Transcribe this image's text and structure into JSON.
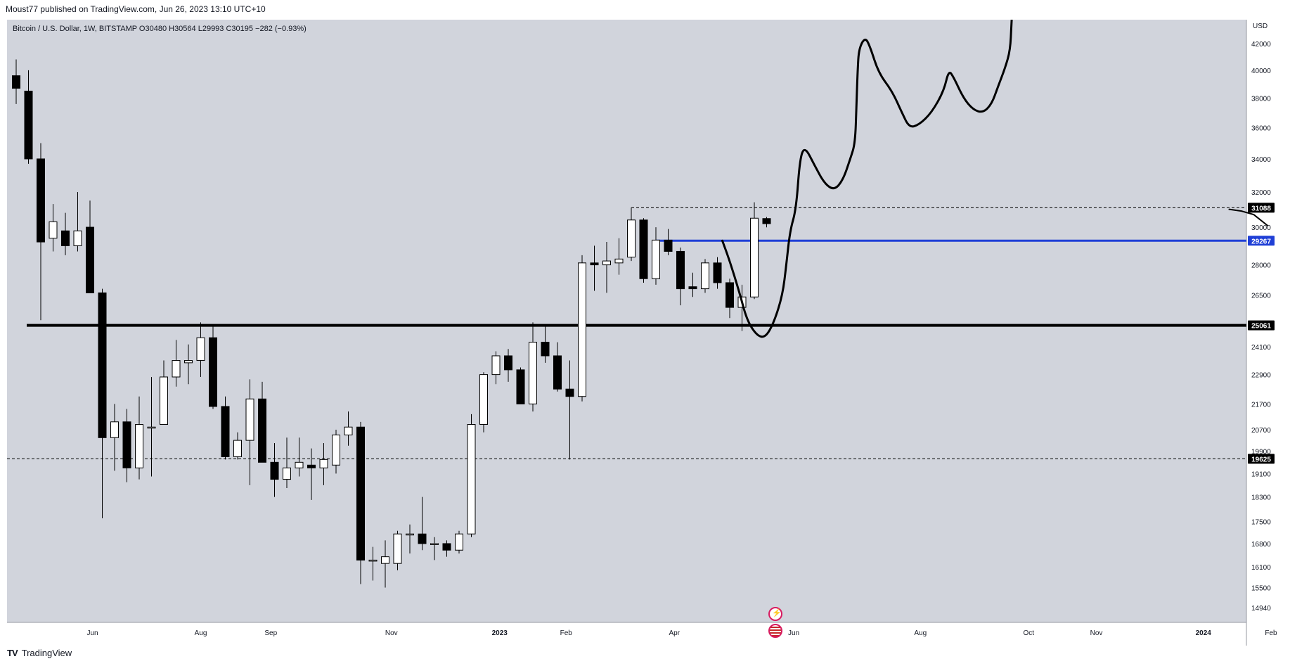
{
  "header": {
    "publisher_line": "Moust77 published on TradingView.com, Jun 26, 2023 13:10 UTC+10"
  },
  "symbol_info": "Bitcoin / U.S. Dollar, 1W, BITSTAMP  O30480  H30564  L29993  C30195  −282 (−0.93%)",
  "footer": {
    "logo_text": "TV",
    "brand": "TradingView"
  },
  "icons": {
    "event_badge": "flash-icon",
    "economic_badge": "us-flag-icon"
  },
  "colors": {
    "background": "#d1d4dc",
    "candle_up": "#ffffff",
    "candle_down": "#000000",
    "support_line": "#000000",
    "blue_line": "#1f3fd6",
    "projection": "#000000"
  },
  "chart_data": {
    "type": "candlestick",
    "currency_label": "USD",
    "y_ticks": [
      42000,
      40000,
      38000,
      36000,
      34000,
      32000,
      30000,
      28000,
      26500,
      24100,
      22900,
      21700,
      20700,
      19900,
      19100,
      18300,
      17500,
      16800,
      16100,
      15500,
      14940
    ],
    "ylim": [
      14500,
      44500
    ],
    "y_scale": "log",
    "x_ticks": [
      "Jun",
      "Aug",
      "Sep",
      "Nov",
      "2023",
      "Feb",
      "Apr",
      "Jun",
      "Aug",
      "Oct",
      "Nov",
      "2024",
      "Feb"
    ],
    "x_tick_weeks": [
      6.2,
      15,
      20.7,
      30.5,
      39.3,
      44.7,
      53.5,
      63.2,
      73.5,
      82.3,
      87.8,
      96.5,
      102
    ],
    "candles": [
      {
        "w": 0,
        "o": 39600,
        "h": 40800,
        "l": 37600,
        "c": 38700
      },
      {
        "w": 1,
        "o": 38500,
        "h": 40000,
        "l": 33700,
        "c": 34000
      },
      {
        "w": 2,
        "o": 34000,
        "h": 35000,
        "l": 25300,
        "c": 29200
      },
      {
        "w": 3,
        "o": 29400,
        "h": 31300,
        "l": 28700,
        "c": 30300
      },
      {
        "w": 4,
        "o": 29800,
        "h": 30800,
        "l": 28500,
        "c": 29000
      },
      {
        "w": 5,
        "o": 29000,
        "h": 32000,
        "l": 28700,
        "c": 29800
      },
      {
        "w": 6,
        "o": 30000,
        "h": 31500,
        "l": 26600,
        "c": 26600
      },
      {
        "w": 7,
        "o": 26600,
        "h": 26800,
        "l": 17600,
        "c": 20400
      },
      {
        "w": 8,
        "o": 20400,
        "h": 21700,
        "l": 19200,
        "c": 21000
      },
      {
        "w": 9,
        "o": 21000,
        "h": 21500,
        "l": 18800,
        "c": 19300
      },
      {
        "w": 10,
        "o": 19300,
        "h": 22000,
        "l": 18900,
        "c": 20900
      },
      {
        "w": 11,
        "o": 20800,
        "h": 22800,
        "l": 19000,
        "c": 20800
      },
      {
        "w": 12,
        "o": 20900,
        "h": 23500,
        "l": 20900,
        "c": 22800
      },
      {
        "w": 13,
        "o": 22800,
        "h": 24400,
        "l": 22400,
        "c": 23500
      },
      {
        "w": 14,
        "o": 23400,
        "h": 24200,
        "l": 22500,
        "c": 23500
      },
      {
        "w": 15,
        "o": 23500,
        "h": 25200,
        "l": 22800,
        "c": 24500
      },
      {
        "w": 16,
        "o": 24500,
        "h": 25100,
        "l": 21500,
        "c": 21600
      },
      {
        "w": 17,
        "o": 21600,
        "h": 22000,
        "l": 19600,
        "c": 19700
      },
      {
        "w": 18,
        "o": 19700,
        "h": 20600,
        "l": 19600,
        "c": 20300
      },
      {
        "w": 19,
        "o": 20300,
        "h": 22700,
        "l": 18700,
        "c": 21900
      },
      {
        "w": 20,
        "o": 21900,
        "h": 22600,
        "l": 19500,
        "c": 19500
      },
      {
        "w": 21,
        "o": 19500,
        "h": 20200,
        "l": 18300,
        "c": 18900
      },
      {
        "w": 22,
        "o": 18900,
        "h": 20400,
        "l": 18600,
        "c": 19300
      },
      {
        "w": 23,
        "o": 19300,
        "h": 20400,
        "l": 19000,
        "c": 19500
      },
      {
        "w": 24,
        "o": 19400,
        "h": 20000,
        "l": 18200,
        "c": 19300
      },
      {
        "w": 25,
        "o": 19300,
        "h": 20200,
        "l": 18700,
        "c": 19600
      },
      {
        "w": 26,
        "o": 19400,
        "h": 20700,
        "l": 19100,
        "c": 20500
      },
      {
        "w": 27,
        "o": 20500,
        "h": 21400,
        "l": 20100,
        "c": 20800
      },
      {
        "w": 28,
        "o": 20800,
        "h": 21000,
        "l": 15600,
        "c": 16300
      },
      {
        "w": 29,
        "o": 16300,
        "h": 16700,
        "l": 15700,
        "c": 16300
      },
      {
        "w": 30,
        "o": 16200,
        "h": 16900,
        "l": 15500,
        "c": 16400
      },
      {
        "w": 31,
        "o": 16200,
        "h": 17200,
        "l": 16000,
        "c": 17100
      },
      {
        "w": 32,
        "o": 17100,
        "h": 17400,
        "l": 16500,
        "c": 17100
      },
      {
        "w": 33,
        "o": 17100,
        "h": 18300,
        "l": 16600,
        "c": 16800
      },
      {
        "w": 34,
        "o": 16800,
        "h": 17000,
        "l": 16300,
        "c": 16800
      },
      {
        "w": 35,
        "o": 16800,
        "h": 16900,
        "l": 16400,
        "c": 16600
      },
      {
        "w": 36,
        "o": 16600,
        "h": 17200,
        "l": 16500,
        "c": 17100
      },
      {
        "w": 37,
        "o": 17100,
        "h": 21300,
        "l": 17000,
        "c": 20900
      },
      {
        "w": 38,
        "o": 20900,
        "h": 23000,
        "l": 20600,
        "c": 22900
      },
      {
        "w": 39,
        "o": 22900,
        "h": 23900,
        "l": 22500,
        "c": 23700
      },
      {
        "w": 40,
        "o": 23700,
        "h": 24000,
        "l": 22600,
        "c": 23100
      },
      {
        "w": 41,
        "o": 23100,
        "h": 23200,
        "l": 21700,
        "c": 21700
      },
      {
        "w": 42,
        "o": 21700,
        "h": 25200,
        "l": 21400,
        "c": 24300
      },
      {
        "w": 43,
        "o": 24300,
        "h": 25100,
        "l": 23400,
        "c": 23700
      },
      {
        "w": 44,
        "o": 23700,
        "h": 24300,
        "l": 22200,
        "c": 22300
      },
      {
        "w": 45,
        "o": 22300,
        "h": 23500,
        "l": 19600,
        "c": 22000
      },
      {
        "w": 46,
        "o": 22000,
        "h": 28500,
        "l": 21800,
        "c": 28100
      },
      {
        "w": 47,
        "o": 28100,
        "h": 29000,
        "l": 26700,
        "c": 28000
      },
      {
        "w": 48,
        "o": 28000,
        "h": 29200,
        "l": 26600,
        "c": 28200
      },
      {
        "w": 49,
        "o": 28100,
        "h": 29400,
        "l": 27500,
        "c": 28300
      },
      {
        "w": 50,
        "o": 28400,
        "h": 31100,
        "l": 28200,
        "c": 30400
      },
      {
        "w": 51,
        "o": 30400,
        "h": 30500,
        "l": 27100,
        "c": 27300
      },
      {
        "w": 52,
        "o": 27300,
        "h": 30000,
        "l": 27000,
        "c": 29300
      },
      {
        "w": 53,
        "o": 29300,
        "h": 29900,
        "l": 28500,
        "c": 28700
      },
      {
        "w": 54,
        "o": 28700,
        "h": 28900,
        "l": 26000,
        "c": 26800
      },
      {
        "w": 55,
        "o": 26900,
        "h": 27600,
        "l": 26400,
        "c": 26800
      },
      {
        "w": 56,
        "o": 26800,
        "h": 28300,
        "l": 26600,
        "c": 28100
      },
      {
        "w": 57,
        "o": 28100,
        "h": 28400,
        "l": 26800,
        "c": 27100
      },
      {
        "w": 58,
        "o": 27100,
        "h": 27300,
        "l": 25400,
        "c": 25900
      },
      {
        "w": 59,
        "o": 25900,
        "h": 27000,
        "l": 24800,
        "c": 26400
      },
      {
        "w": 60,
        "o": 26400,
        "h": 31400,
        "l": 26300,
        "c": 30500
      },
      {
        "w": 61,
        "o": 30480,
        "h": 30564,
        "l": 29993,
        "c": 30195
      }
    ],
    "price_labels": [
      {
        "value": 31088,
        "label": "31088",
        "style": "dashed",
        "color": "#000000",
        "from_week": 50
      },
      {
        "value": 29267,
        "label": "29267",
        "style": "solid",
        "color": "#1f3fd6",
        "from_week": 52
      },
      {
        "value": 25061,
        "label": "25061",
        "style": "solid-thick",
        "color": "#000000",
        "from_week": -1
      },
      {
        "value": 19625,
        "label": "19625",
        "style": "dashed",
        "color": "#000000",
        "from_week": -2
      }
    ],
    "projection_path": [
      [
        57.4,
        29267
      ],
      [
        58,
        28200
      ],
      [
        58.8,
        26600
      ],
      [
        59.4,
        25300
      ],
      [
        60.2,
        24600
      ],
      [
        60.9,
        24500
      ],
      [
        61.6,
        25200
      ],
      [
        62.3,
        26500
      ],
      [
        62.6,
        28000
      ],
      [
        62.9,
        29800
      ],
      [
        63.4,
        31000
      ],
      [
        63.7,
        34000
      ],
      [
        64.1,
        34800
      ],
      [
        64.9,
        33600
      ],
      [
        65.7,
        32500
      ],
      [
        66.5,
        32100
      ],
      [
        67.2,
        32700
      ],
      [
        67.8,
        34000
      ],
      [
        68.2,
        35000
      ],
      [
        68.3,
        37500
      ],
      [
        68.4,
        40000
      ],
      [
        68.5,
        41600
      ],
      [
        69,
        42500
      ],
      [
        69.4,
        41800
      ],
      [
        70.1,
        39800
      ],
      [
        71.2,
        38500
      ],
      [
        72,
        37000
      ],
      [
        72.6,
        36000
      ],
      [
        73.4,
        36200
      ],
      [
        74.4,
        37000
      ],
      [
        75.4,
        38500
      ],
      [
        75.8,
        40000
      ],
      [
        76.2,
        39500
      ],
      [
        77,
        38000
      ],
      [
        77.8,
        37200
      ],
      [
        78.6,
        37000
      ],
      [
        79.3,
        37600
      ],
      [
        79.8,
        38800
      ],
      [
        80.4,
        40200
      ],
      [
        80.8,
        41500
      ],
      [
        80.9,
        43500
      ],
      [
        81,
        45500
      ]
    ],
    "projection_tail": [
      [
        98.6,
        31000
      ],
      [
        99.6,
        30900
      ],
      [
        100.6,
        30700
      ],
      [
        101.7,
        30100
      ]
    ]
  }
}
